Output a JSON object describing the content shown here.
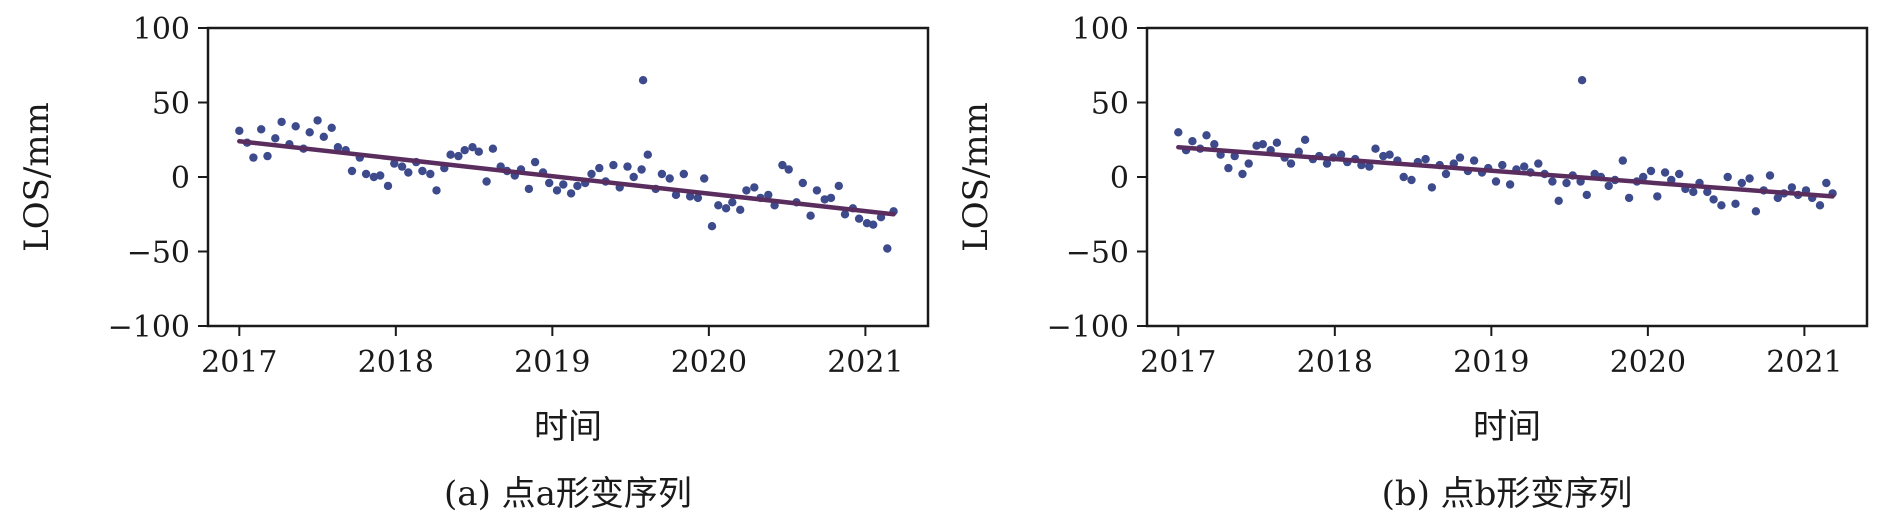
{
  "chart_data": [
    {
      "type": "scatter",
      "caption": "(a) 点a形变序列",
      "xlabel": "时间",
      "ylabel": "LOS/mm",
      "xlim": [
        2016.8,
        2021.4
      ],
      "ylim": [
        -100,
        100
      ],
      "xticks": [
        "2017",
        "2018",
        "2019",
        "2020",
        "2021"
      ],
      "yticks": [
        "100",
        "50",
        "0",
        "−50",
        "−100"
      ],
      "marker_color": "#3d4a8c",
      "trend_color": "#5a2d5f",
      "trend": {
        "x": [
          2017.0,
          2021.18
        ],
        "y": [
          24,
          -25
        ]
      },
      "points": {
        "x": [
          2017.0,
          2017.05,
          2017.09,
          2017.14,
          2017.18,
          2017.23,
          2017.27,
          2017.32,
          2017.36,
          2017.41,
          2017.45,
          2017.5,
          2017.54,
          2017.59,
          2017.63,
          2017.68,
          2017.72,
          2017.77,
          2017.81,
          2017.86,
          2017.9,
          2017.95,
          2017.99,
          2018.04,
          2018.08,
          2018.13,
          2018.17,
          2018.22,
          2018.26,
          2018.31,
          2018.35,
          2018.4,
          2018.44,
          2018.49,
          2018.53,
          2018.58,
          2018.62,
          2018.67,
          2018.71,
          2018.76,
          2018.8,
          2018.85,
          2018.89,
          2018.94,
          2018.98,
          2019.03,
          2019.07,
          2019.12,
          2019.16,
          2019.21,
          2019.25,
          2019.3,
          2019.34,
          2019.39,
          2019.43,
          2019.48,
          2019.52,
          2019.57,
          2019.61,
          2019.66,
          2019.7,
          2019.75,
          2019.79,
          2019.84,
          2019.88,
          2019.93,
          2019.97,
          2020.02,
          2020.06,
          2020.11,
          2020.15,
          2020.2,
          2020.24,
          2020.29,
          2020.33,
          2020.38,
          2020.42,
          2020.47,
          2020.51,
          2020.56,
          2020.6,
          2020.65,
          2020.69,
          2020.74,
          2020.78,
          2020.83,
          2020.87,
          2020.92,
          2020.96,
          2021.01,
          2021.05,
          2021.1,
          2021.14,
          2021.18,
          2019.58
        ],
        "y": [
          31,
          23,
          13,
          32,
          14,
          26,
          37,
          22,
          34,
          19,
          30,
          38,
          27,
          33,
          20,
          18,
          4,
          13,
          2,
          0,
          1,
          -6,
          9,
          7,
          3,
          10,
          4,
          2,
          -9,
          6,
          15,
          14,
          18,
          20,
          17,
          -3,
          19,
          7,
          4,
          1,
          5,
          -8,
          10,
          3,
          -4,
          -9,
          -5,
          -11,
          -6,
          -4,
          2,
          6,
          -3,
          8,
          -7,
          7,
          0,
          5,
          15,
          -8,
          2,
          -1,
          -12,
          2,
          -13,
          -14,
          -1,
          -33,
          -19,
          -21,
          -17,
          -22,
          -9,
          -7,
          -14,
          -12,
          -19,
          8,
          5,
          -17,
          -4,
          -26,
          -9,
          -15,
          -14,
          -6,
          -25,
          -21,
          -28,
          -31,
          -32,
          -27,
          -48,
          -23,
          65
        ]
      }
    },
    {
      "type": "scatter",
      "caption": "(b) 点b形变序列",
      "xlabel": "时间",
      "ylabel": "LOS/mm",
      "xlim": [
        2016.8,
        2021.4
      ],
      "ylim": [
        -100,
        100
      ],
      "xticks": [
        "2017",
        "2018",
        "2019",
        "2020",
        "2021"
      ],
      "yticks": [
        "100",
        "50",
        "0",
        "−50",
        "−100"
      ],
      "marker_color": "#3d4a8c",
      "trend_color": "#5a2d5f",
      "trend": {
        "x": [
          2017.0,
          2021.18
        ],
        "y": [
          20,
          -13
        ]
      },
      "points": {
        "x": [
          2017.0,
          2017.05,
          2017.09,
          2017.14,
          2017.18,
          2017.23,
          2017.27,
          2017.32,
          2017.36,
          2017.41,
          2017.45,
          2017.5,
          2017.54,
          2017.59,
          2017.63,
          2017.68,
          2017.72,
          2017.77,
          2017.81,
          2017.86,
          2017.9,
          2017.95,
          2017.99,
          2018.04,
          2018.08,
          2018.13,
          2018.17,
          2018.22,
          2018.26,
          2018.31,
          2018.35,
          2018.4,
          2018.44,
          2018.49,
          2018.53,
          2018.58,
          2018.62,
          2018.67,
          2018.71,
          2018.76,
          2018.8,
          2018.85,
          2018.89,
          2018.94,
          2018.98,
          2019.03,
          2019.07,
          2019.12,
          2019.16,
          2019.21,
          2019.25,
          2019.3,
          2019.34,
          2019.39,
          2019.43,
          2019.48,
          2019.52,
          2019.57,
          2019.61,
          2019.66,
          2019.7,
          2019.75,
          2019.79,
          2019.84,
          2019.88,
          2019.93,
          2019.97,
          2020.02,
          2020.06,
          2020.11,
          2020.15,
          2020.2,
          2020.24,
          2020.29,
          2020.33,
          2020.38,
          2020.42,
          2020.47,
          2020.51,
          2020.56,
          2020.6,
          2020.65,
          2020.69,
          2020.74,
          2020.78,
          2020.83,
          2020.87,
          2020.92,
          2020.96,
          2021.01,
          2021.05,
          2021.1,
          2021.14,
          2021.18,
          2019.58
        ],
        "y": [
          30,
          18,
          24,
          19,
          28,
          22,
          15,
          6,
          14,
          2,
          9,
          21,
          22,
          18,
          23,
          13,
          9,
          17,
          25,
          12,
          14,
          9,
          13,
          15,
          10,
          12,
          8,
          7,
          19,
          14,
          15,
          11,
          0,
          -2,
          10,
          12,
          -7,
          8,
          2,
          9,
          13,
          4,
          11,
          3,
          6,
          -3,
          8,
          -5,
          5,
          7,
          3,
          9,
          2,
          -3,
          -16,
          -4,
          1,
          -3,
          -12,
          2,
          0,
          -6,
          -2,
          11,
          -14,
          -3,
          0,
          4,
          -13,
          3,
          -2,
          2,
          -8,
          -10,
          -4,
          -10,
          -15,
          -19,
          0,
          -18,
          -4,
          -1,
          -23,
          -9,
          1,
          -14,
          -11,
          -7,
          -12,
          -9,
          -14,
          -19,
          -4,
          -11,
          65
        ]
      }
    }
  ]
}
